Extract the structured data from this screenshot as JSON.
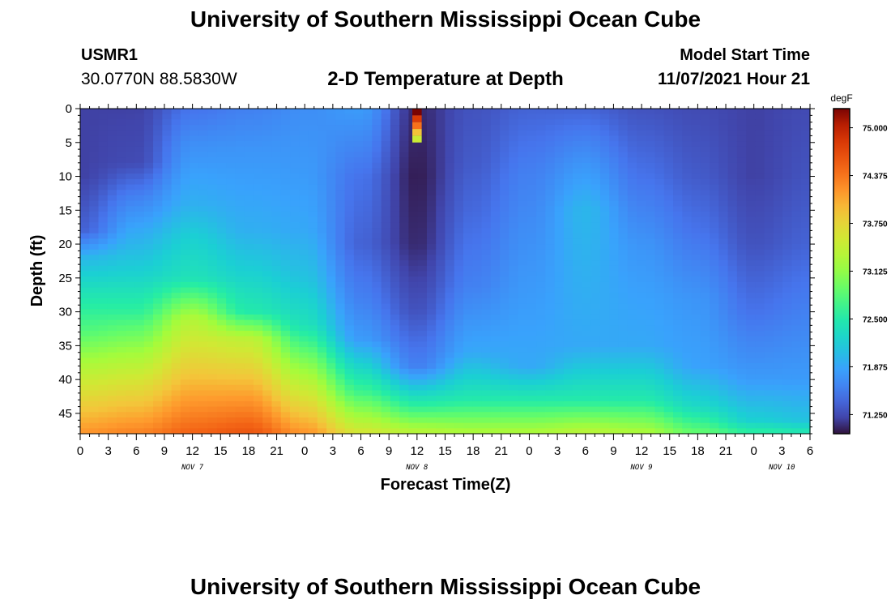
{
  "header": {
    "title": "University of Southern Mississippi Ocean Cube",
    "station": "USMR1",
    "coords": "30.0770N  88.5830W",
    "plot_title": "2-D Temperature at Depth",
    "model_start_label": "Model Start Time",
    "model_start_value": "11/07/2021 Hour 21"
  },
  "footer": {
    "title": "University of Southern Mississippi Ocean Cube"
  },
  "chart_data": {
    "type": "heatmap",
    "title": "2-D Temperature at Depth",
    "xlabel": "Forecast Time(Z)",
    "ylabel": "Depth (ft)",
    "x_tick_labels": [
      "0",
      "3",
      "6",
      "9",
      "12",
      "15",
      "18",
      "21",
      "0",
      "3",
      "6",
      "9",
      "12",
      "15",
      "18",
      "21",
      "0",
      "3",
      "6",
      "9",
      "12",
      "15",
      "18",
      "21",
      "0",
      "3",
      "6"
    ],
    "x_range_hours": [
      0,
      78
    ],
    "day_labels": [
      {
        "label": "NOV 7",
        "hour": 12
      },
      {
        "label": "NOV 8",
        "hour": 36
      },
      {
        "label": "NOV 9",
        "hour": 60
      },
      {
        "label": "NOV 10",
        "hour": 75
      }
    ],
    "y_tick_labels": [
      "0",
      "5",
      "10",
      "15",
      "20",
      "25",
      "30",
      "35",
      "40",
      "45"
    ],
    "y_ticks": [
      0,
      5,
      10,
      15,
      20,
      25,
      30,
      35,
      40,
      45
    ],
    "y_range_ft": [
      0,
      48
    ],
    "y_inverted": true,
    "colorbar": {
      "unit": "degF",
      "range": [
        71.0,
        75.25
      ],
      "tick_values": [
        75.0,
        74.375,
        73.75,
        73.125,
        72.5,
        71.875,
        71.25
      ],
      "tick_labels": [
        "75.000",
        "74.375",
        "73.750",
        "73.125",
        "72.500",
        "71.875",
        "71.250"
      ]
    },
    "temperature_profiles_degF": [
      {
        "hour": 0,
        "depths": [
          0,
          10,
          18,
          22,
          27,
          33,
          38,
          48
        ],
        "temps": [
          71.2,
          71.2,
          71.4,
          72.0,
          72.4,
          72.8,
          73.3,
          74.2
        ]
      },
      {
        "hour": 6,
        "depths": [
          0,
          8,
          13,
          18,
          24,
          30,
          36,
          48
        ],
        "temps": [
          71.2,
          71.25,
          71.6,
          71.9,
          72.2,
          72.6,
          73.2,
          74.3
        ]
      },
      {
        "hour": 12,
        "depths": [
          0,
          5,
          10,
          14,
          19,
          25,
          31,
          48
        ],
        "temps": [
          71.5,
          71.7,
          71.85,
          71.95,
          72.2,
          72.4,
          73.3,
          74.5
        ]
      },
      {
        "hour": 18,
        "depths": [
          0,
          6,
          12,
          18,
          24,
          30,
          34,
          48
        ],
        "temps": [
          71.6,
          71.75,
          71.85,
          71.95,
          72.2,
          72.5,
          73.4,
          74.6
        ]
      },
      {
        "hour": 24,
        "depths": [
          0,
          10,
          18,
          25,
          32,
          37,
          48
        ],
        "temps": [
          71.7,
          71.8,
          71.9,
          72.1,
          72.4,
          73.0,
          74.2
        ]
      },
      {
        "hour": 30,
        "depths": [
          0,
          10,
          20,
          28,
          34,
          42,
          48
        ],
        "temps": [
          71.8,
          71.5,
          71.4,
          71.6,
          71.8,
          72.7,
          73.6
        ]
      },
      {
        "hour": 36,
        "depths": [
          0,
          10,
          20,
          30,
          38,
          44,
          48
        ],
        "temps": [
          71.1,
          71.05,
          71.1,
          71.3,
          71.6,
          72.6,
          73.4
        ]
      },
      {
        "hour": 42,
        "depths": [
          0,
          8,
          16,
          26,
          36,
          43,
          48
        ],
        "temps": [
          71.3,
          71.35,
          71.45,
          71.6,
          71.9,
          72.5,
          73.3
        ]
      },
      {
        "hour": 48,
        "depths": [
          0,
          10,
          18,
          28,
          38,
          43,
          48
        ],
        "temps": [
          71.4,
          71.6,
          71.7,
          71.8,
          71.9,
          72.5,
          73.3
        ]
      },
      {
        "hour": 54,
        "depths": [
          0,
          8,
          15,
          25,
          35,
          43,
          48
        ],
        "temps": [
          71.4,
          71.75,
          72.0,
          71.95,
          71.9,
          72.5,
          73.4
        ]
      },
      {
        "hour": 60,
        "depths": [
          0,
          10,
          20,
          28,
          35,
          43,
          48
        ],
        "temps": [
          71.3,
          71.5,
          71.75,
          71.85,
          71.9,
          72.5,
          73.3
        ]
      },
      {
        "hour": 66,
        "depths": [
          0,
          10,
          18,
          28,
          38,
          44,
          48
        ],
        "temps": [
          71.25,
          71.35,
          71.5,
          71.75,
          71.85,
          72.3,
          72.9
        ]
      },
      {
        "hour": 72,
        "depths": [
          0,
          10,
          20,
          30,
          40,
          46,
          48
        ],
        "temps": [
          71.2,
          71.2,
          71.3,
          71.5,
          71.8,
          72.2,
          72.6
        ]
      },
      {
        "hour": 78,
        "depths": [
          0,
          10,
          20,
          30,
          40,
          46,
          48
        ],
        "temps": [
          71.25,
          71.3,
          71.4,
          71.6,
          71.8,
          72.1,
          72.5
        ]
      }
    ],
    "anomaly": {
      "hour": 36,
      "depths": [
        0,
        1,
        2,
        3,
        4
      ],
      "temps": [
        75.25,
        74.8,
        74.4,
        73.9,
        73.5
      ]
    }
  }
}
